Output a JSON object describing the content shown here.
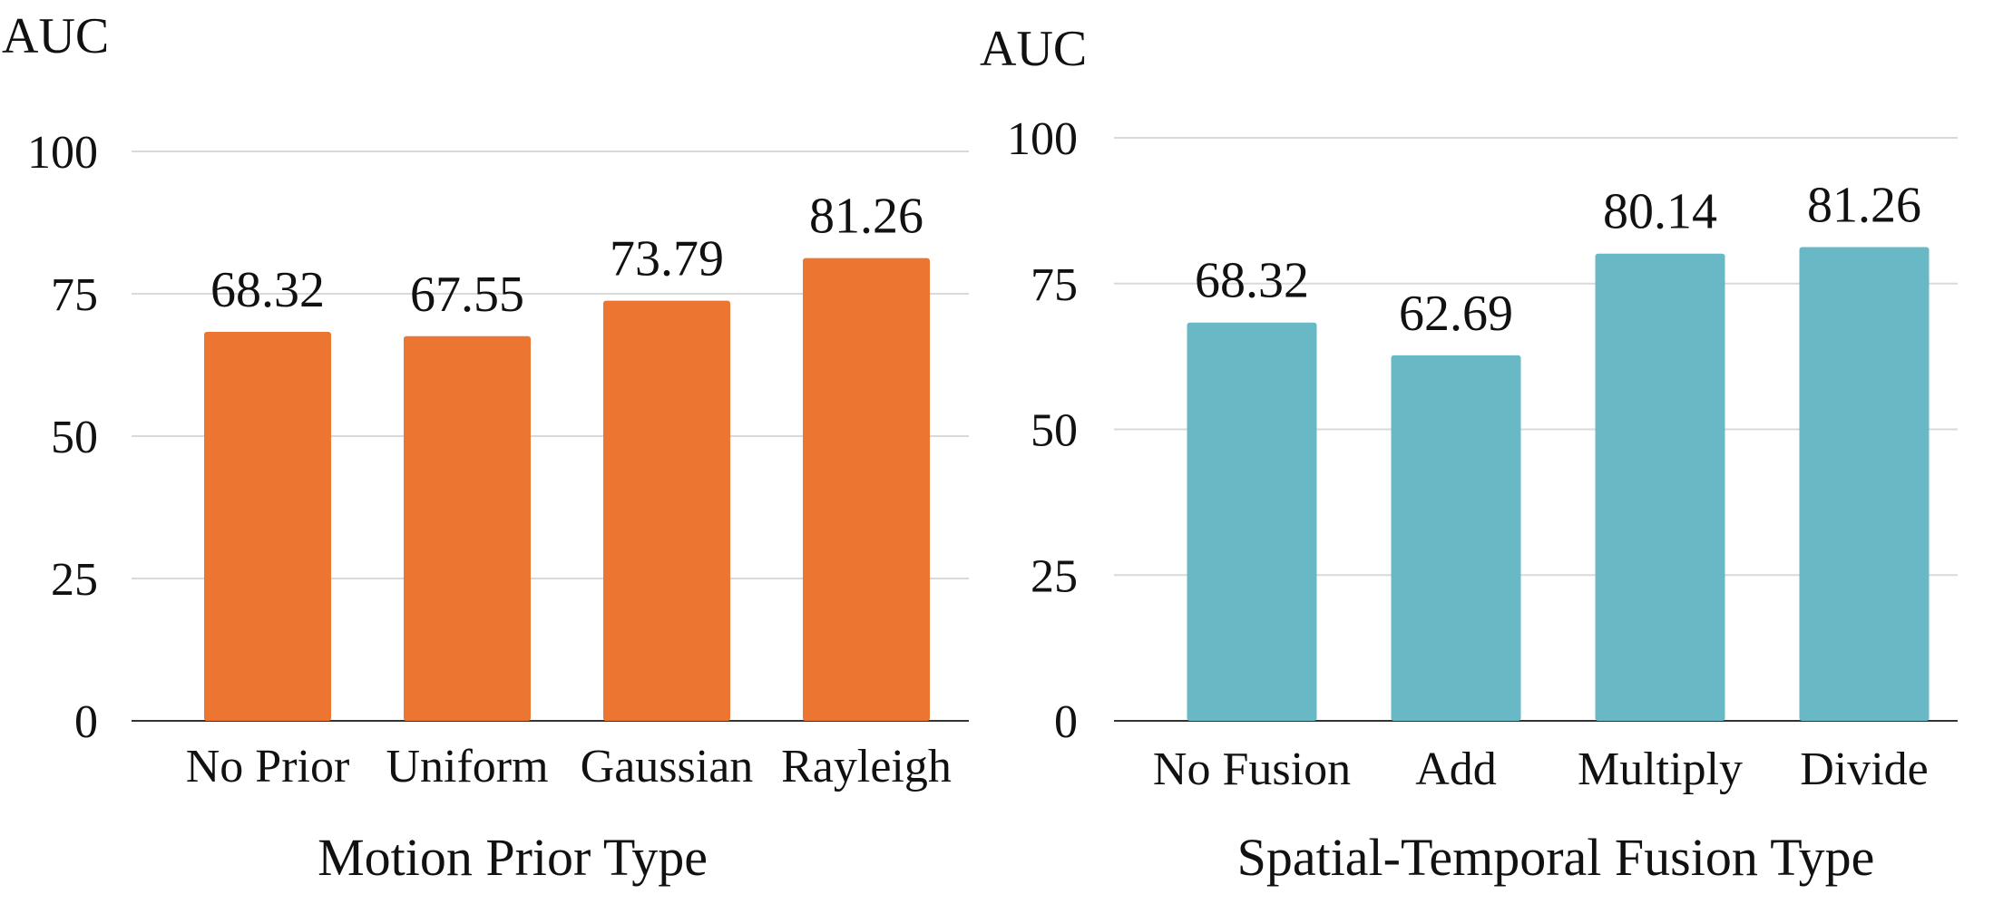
{
  "chart_data": [
    {
      "type": "bar",
      "ylabel": "AUC",
      "xlabel": "Motion Prior Type",
      "categories": [
        "No Prior",
        "Uniform",
        "Gaussian",
        "Rayleigh"
      ],
      "values": [
        68.32,
        67.55,
        73.79,
        81.26
      ],
      "value_labels": [
        "68.32",
        "67.55",
        "73.79",
        "81.26"
      ],
      "ylim": [
        0,
        100
      ],
      "yticks": [
        "0",
        "25",
        "50",
        "75",
        "100"
      ],
      "grid": true,
      "color": "#ED7532"
    },
    {
      "type": "bar",
      "ylabel": "AUC",
      "xlabel": "Spatial-Temporal Fusion Type",
      "categories": [
        "No Fusion",
        "Add",
        "Multiply",
        "Divide"
      ],
      "values": [
        68.32,
        62.69,
        80.14,
        81.26
      ],
      "value_labels": [
        "68.32",
        "62.69",
        "80.14",
        "81.26"
      ],
      "ylim": [
        0,
        100
      ],
      "yticks": [
        "0",
        "25",
        "50",
        "75",
        "100"
      ],
      "grid": true,
      "color": "#68B9C5"
    }
  ]
}
